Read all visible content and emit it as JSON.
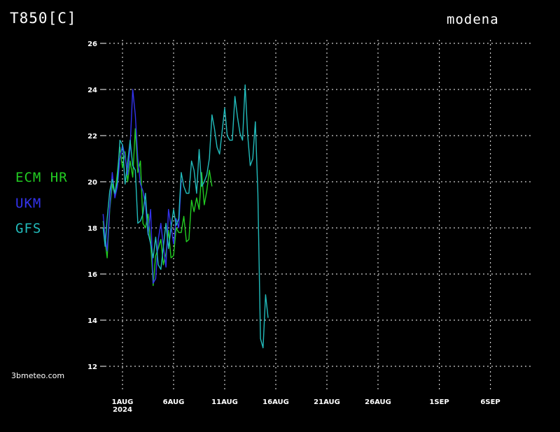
{
  "header": {
    "title": "T850[C]",
    "station": "modena"
  },
  "footer": {
    "site": "3bmeteo.com"
  },
  "colors": {
    "ECM HR": "#22cc22",
    "UKM": "#3333ee",
    "GFS": "#22bbbb",
    "grid": "#cccccc",
    "background": "#000000"
  },
  "chart_data": {
    "type": "line",
    "title": "T850[C]",
    "xlabel": "",
    "ylabel": "",
    "ylim": [
      12,
      26
    ],
    "yticks": [
      12,
      14,
      16,
      18,
      20,
      22,
      24,
      26
    ],
    "xlim": [
      -1.5,
      37.5
    ],
    "xticks": [
      {
        "day": 0,
        "label": "1AUG",
        "sub": "2024"
      },
      {
        "day": 5,
        "label": "6AUG",
        "sub": ""
      },
      {
        "day": 10,
        "label": "11AUG",
        "sub": ""
      },
      {
        "day": 15,
        "label": "16AUG",
        "sub": ""
      },
      {
        "day": 20,
        "label": "21AUG",
        "sub": ""
      },
      {
        "day": 25,
        "label": "26AUG",
        "sub": ""
      },
      {
        "day": 31,
        "label": "1SEP",
        "sub": ""
      },
      {
        "day": 36,
        "label": "6SEP",
        "sub": ""
      }
    ],
    "grid": true,
    "legend_position": "left",
    "series": [
      {
        "name": "ECM HR",
        "points": [
          [
            -1.9,
            18.3
          ],
          [
            -1.7,
            17.4
          ],
          [
            -1.5,
            16.7
          ],
          [
            -1.25,
            18.8
          ],
          [
            -1.0,
            19.9
          ],
          [
            -0.75,
            19.4
          ],
          [
            -0.5,
            20.4
          ],
          [
            -0.25,
            21.5
          ],
          [
            0.0,
            20.6
          ],
          [
            0.25,
            21.3
          ],
          [
            0.5,
            20.0
          ],
          [
            0.75,
            20.9
          ],
          [
            1.0,
            20.2
          ],
          [
            1.25,
            22.3
          ],
          [
            1.5,
            20.4
          ],
          [
            1.75,
            20.9
          ],
          [
            2.0,
            18.2
          ],
          [
            2.25,
            18.0
          ],
          [
            2.5,
            18.6
          ],
          [
            2.75,
            17.4
          ],
          [
            3.0,
            15.5
          ],
          [
            3.25,
            16.8
          ],
          [
            3.5,
            17.1
          ],
          [
            3.75,
            17.5
          ],
          [
            4.0,
            16.4
          ],
          [
            4.25,
            16.9
          ],
          [
            4.5,
            17.9
          ],
          [
            4.75,
            16.7
          ],
          [
            5.0,
            16.8
          ],
          [
            5.25,
            18.0
          ],
          [
            5.5,
            17.8
          ],
          [
            5.75,
            17.8
          ],
          [
            6.0,
            18.5
          ],
          [
            6.25,
            17.4
          ],
          [
            6.5,
            17.5
          ],
          [
            6.75,
            19.2
          ],
          [
            7.0,
            18.7
          ],
          [
            7.25,
            19.3
          ],
          [
            7.5,
            18.8
          ],
          [
            7.75,
            20.4
          ],
          [
            8.0,
            19.0
          ],
          [
            8.25,
            19.6
          ],
          [
            8.5,
            20.5
          ],
          [
            8.75,
            19.8
          ]
        ]
      },
      {
        "name": "UKM",
        "points": [
          [
            -1.9,
            18.6
          ],
          [
            -1.7,
            17.6
          ],
          [
            -1.5,
            17.0
          ],
          [
            -1.25,
            18.9
          ],
          [
            -1.0,
            20.4
          ],
          [
            -0.75,
            19.3
          ],
          [
            -0.5,
            19.8
          ],
          [
            -0.25,
            21.0
          ],
          [
            0.0,
            21.6
          ],
          [
            0.25,
            21.1
          ],
          [
            0.5,
            20.3
          ],
          [
            0.75,
            21.5
          ],
          [
            1.0,
            24.0
          ],
          [
            1.25,
            22.9
          ],
          [
            1.5,
            21.0
          ],
          [
            1.75,
            19.9
          ],
          [
            2.0,
            19.6
          ],
          [
            2.25,
            19.0
          ],
          [
            2.5,
            17.7
          ],
          [
            2.75,
            18.8
          ],
          [
            3.0,
            15.6
          ],
          [
            3.25,
            15.8
          ],
          [
            3.5,
            17.5
          ],
          [
            3.75,
            18.2
          ],
          [
            4.0,
            17.2
          ],
          [
            4.25,
            16.3
          ],
          [
            4.5,
            18.8
          ],
          [
            4.75,
            18.1
          ],
          [
            5.0,
            17.3
          ],
          [
            5.25,
            18.4
          ],
          [
            5.5,
            18.0
          ],
          [
            5.75,
            20.1
          ]
        ]
      },
      {
        "name": "GFS",
        "points": [
          [
            -1.9,
            18.0
          ],
          [
            -1.7,
            17.2
          ],
          [
            -1.5,
            18.4
          ],
          [
            -1.25,
            19.6
          ],
          [
            -1.0,
            20.1
          ],
          [
            -0.75,
            19.5
          ],
          [
            -0.5,
            20.0
          ],
          [
            -0.25,
            21.8
          ],
          [
            0.0,
            21.6
          ],
          [
            0.25,
            19.9
          ],
          [
            0.5,
            20.8
          ],
          [
            0.75,
            21.8
          ],
          [
            1.0,
            20.7
          ],
          [
            1.25,
            20.5
          ],
          [
            1.5,
            18.2
          ],
          [
            1.75,
            18.3
          ],
          [
            2.0,
            18.6
          ],
          [
            2.25,
            19.5
          ],
          [
            2.5,
            17.8
          ],
          [
            2.75,
            17.3
          ],
          [
            3.0,
            16.7
          ],
          [
            3.25,
            17.6
          ],
          [
            3.5,
            16.4
          ],
          [
            3.75,
            16.2
          ],
          [
            4.0,
            17.2
          ],
          [
            4.25,
            18.2
          ],
          [
            4.5,
            17.1
          ],
          [
            4.75,
            18.0
          ],
          [
            5.0,
            18.8
          ],
          [
            5.25,
            18.1
          ],
          [
            5.5,
            18.4
          ],
          [
            5.75,
            20.4
          ],
          [
            6.0,
            19.8
          ],
          [
            6.25,
            19.5
          ],
          [
            6.5,
            19.5
          ],
          [
            6.75,
            20.9
          ],
          [
            7.0,
            20.5
          ],
          [
            7.25,
            19.5
          ],
          [
            7.5,
            21.4
          ],
          [
            7.75,
            19.8
          ],
          [
            8.0,
            20.0
          ],
          [
            8.25,
            20.3
          ],
          [
            8.5,
            21.0
          ],
          [
            8.75,
            22.9
          ],
          [
            9.0,
            22.3
          ],
          [
            9.25,
            21.5
          ],
          [
            9.5,
            21.2
          ],
          [
            9.75,
            22.2
          ],
          [
            10.0,
            23.2
          ],
          [
            10.25,
            22.0
          ],
          [
            10.5,
            21.8
          ],
          [
            10.75,
            21.8
          ],
          [
            11.0,
            23.7
          ],
          [
            11.25,
            22.8
          ],
          [
            11.5,
            22.1
          ],
          [
            11.75,
            21.8
          ],
          [
            12.0,
            24.2
          ],
          [
            12.25,
            22.0
          ],
          [
            12.5,
            20.7
          ],
          [
            12.75,
            21.0
          ],
          [
            13.0,
            22.6
          ],
          [
            13.25,
            19.5
          ],
          [
            13.5,
            13.2
          ],
          [
            13.75,
            12.8
          ],
          [
            14.0,
            15.1
          ],
          [
            14.25,
            14.1
          ]
        ]
      }
    ]
  }
}
